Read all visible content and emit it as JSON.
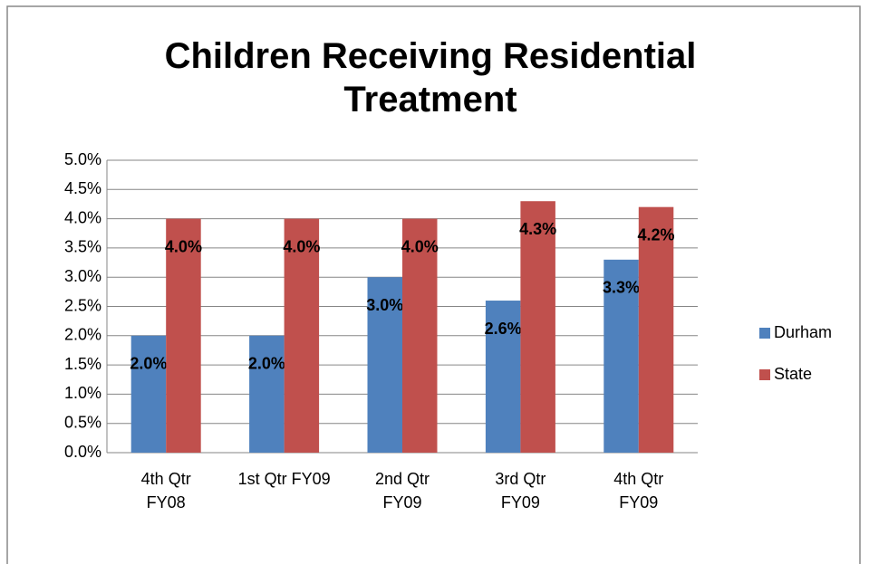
{
  "chart_data": {
    "type": "bar",
    "title": "Children Receiving Residential Treatment",
    "categories": [
      "4th Qtr\nFY08",
      "1st Qtr FY09",
      "2nd Qtr\nFY09",
      "3rd Qtr\nFY09",
      "4th Qtr\nFY09"
    ],
    "series": [
      {
        "name": "Durham",
        "color": "#4f81bd",
        "values": [
          2.0,
          2.0,
          3.0,
          2.6,
          3.3
        ],
        "value_labels": [
          "2.0%",
          "2.0%",
          "3.0%",
          "2.6%",
          "3.3%"
        ]
      },
      {
        "name": "State",
        "color": "#c0504d",
        "values": [
          4.0,
          4.0,
          4.0,
          4.3,
          4.2
        ],
        "value_labels": [
          "4.0%",
          "4.0%",
          "4.0%",
          "4.3%",
          "4.2%"
        ]
      }
    ],
    "ylim": [
      0,
      5
    ],
    "yticks": [
      {
        "value": 0,
        "label": "0.0%"
      },
      {
        "value": 0.5,
        "label": "0.5%"
      },
      {
        "value": 1,
        "label": "1.0%"
      },
      {
        "value": 1.5,
        "label": "1.5%"
      },
      {
        "value": 2,
        "label": "2.0%"
      },
      {
        "value": 2.5,
        "label": "2.5%"
      },
      {
        "value": 3,
        "label": "3.0%"
      },
      {
        "value": 3.5,
        "label": "3.5%"
      },
      {
        "value": 4,
        "label": "4.0%"
      },
      {
        "value": 4.5,
        "label": "4.5%"
      },
      {
        "value": 5,
        "label": "5.0%"
      }
    ],
    "grid": true,
    "legend": "right"
  }
}
